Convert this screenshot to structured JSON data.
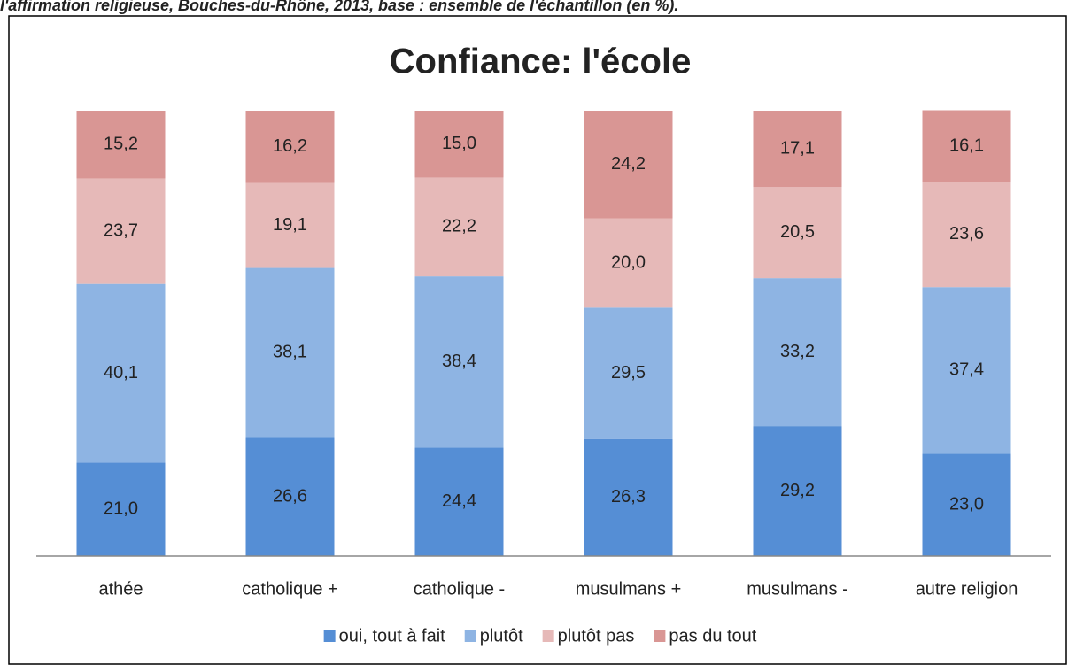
{
  "chart_data": {
    "type": "stacked_bar",
    "caption": "l'affirmation religieuse, Bouches-du-Rhône, 2013, base : ensemble de l'échantillon (en %).",
    "title": "Confiance: l'école",
    "categories": [
      "athée",
      "catholique +",
      "catholique -",
      "musulmans +",
      "musulmans -",
      "autre religion"
    ],
    "series": [
      {
        "name": "oui, tout à fait",
        "color": "#558ed5",
        "values": [
          21.0,
          26.6,
          24.4,
          26.3,
          29.2,
          23.0
        ],
        "value_labels": [
          "21,0",
          "26,6",
          "24,4",
          "26,3",
          "29,2",
          "23,0"
        ]
      },
      {
        "name": "plutôt",
        "color": "#8eb4e3",
        "values": [
          40.1,
          38.1,
          38.4,
          29.5,
          33.2,
          37.4
        ],
        "value_labels": [
          "40,1",
          "38,1",
          "38,4",
          "29,5",
          "33,2",
          "37,4"
        ]
      },
      {
        "name": "plutôt pas",
        "color": "#e6b9b8",
        "values": [
          23.7,
          19.1,
          22.2,
          20.0,
          20.5,
          23.6
        ],
        "value_labels": [
          "23,7",
          "19,1",
          "22,2",
          "20,0",
          "20,5",
          "23,6"
        ]
      },
      {
        "name": "pas du tout",
        "color": "#d99694",
        "values": [
          15.2,
          16.2,
          15.0,
          24.2,
          17.1,
          16.1
        ],
        "value_labels": [
          "15,2",
          "16,2",
          "15,0",
          "24,2",
          "17,1",
          "16,1"
        ]
      }
    ],
    "ylim": [
      0,
      100
    ],
    "legend": "bottom"
  }
}
